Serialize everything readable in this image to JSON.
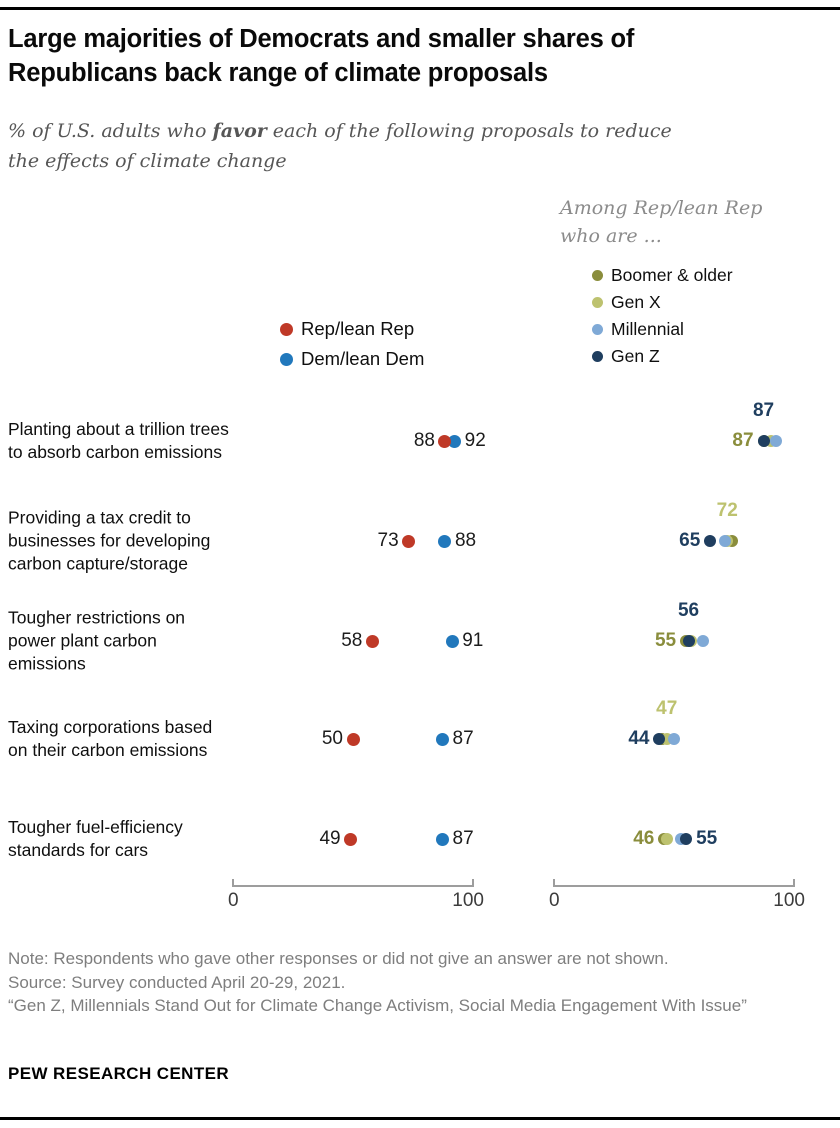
{
  "header": {
    "title": "Large majorities of Democrats and smaller shares of Republicans back range of climate proposals",
    "subtitle_prefix": "% of U.S. adults who ",
    "subtitle_bold": "favor",
    "subtitle_suffix": " each of the following proposals to reduce the effects of climate change"
  },
  "legend": {
    "party": [
      {
        "key": "rep",
        "label": "Rep/lean Rep",
        "color": "#bf3927"
      },
      {
        "key": "dem",
        "label": "Dem/lean Dem",
        "color": "#2178bc"
      }
    ],
    "generation_note": "Among Rep/lean Rep who are ...",
    "generations": [
      {
        "key": "boomer",
        "label": "Boomer & older",
        "color": "#8a8d3c"
      },
      {
        "key": "genx",
        "label": "Gen X",
        "color": "#bdc26f"
      },
      {
        "key": "millennial",
        "label": "Millennial",
        "color": "#7fa9d6"
      },
      {
        "key": "genz",
        "label": "Gen Z",
        "color": "#1f3e5f"
      }
    ]
  },
  "chart_data": {
    "type": "scatter",
    "variant": "dot-plot",
    "title": "Large majorities of Democrats and smaller shares of Republicans back range of climate proposals",
    "units": "% favor",
    "axis": {
      "min": 0,
      "max": 100,
      "tick_labels": [
        "0",
        "100"
      ]
    },
    "panels": [
      "Rep/lean Rep vs Dem/lean Dem (all U.S. adults)",
      "Among Rep/lean Rep by generation"
    ],
    "series_order": [
      "rep",
      "dem",
      "boomer",
      "genx",
      "millennial",
      "genz"
    ],
    "rows": [
      {
        "label": "Planting about a trillion trees to absorb carbon emissions",
        "rep": 88,
        "dem": 92,
        "generations": {
          "boomer": 87,
          "genx": 90,
          "millennial": 92,
          "genz": 87
        },
        "value_labels": [
          {
            "series": "genz",
            "value": 87,
            "placement": "above"
          },
          {
            "series": "boomer",
            "value": 87,
            "placement": "left"
          }
        ]
      },
      {
        "label": "Providing a tax credit to businesses for developing carbon capture/storage",
        "rep": 73,
        "dem": 88,
        "generations": {
          "boomer": 74,
          "genx": 72,
          "millennial": 71,
          "genz": 65
        },
        "value_labels": [
          {
            "series": "genx",
            "value": 72,
            "placement": "above"
          },
          {
            "series": "genz",
            "value": 65,
            "placement": "left"
          }
        ]
      },
      {
        "label": "Tougher restrictions on power plant carbon emissions",
        "rep": 58,
        "dem": 91,
        "generations": {
          "boomer": 55,
          "genx": 57,
          "millennial": 62,
          "genz": 56
        },
        "value_labels": [
          {
            "series": "genz",
            "value": 56,
            "placement": "above"
          },
          {
            "series": "boomer",
            "value": 55,
            "placement": "left"
          }
        ]
      },
      {
        "label": "Taxing corporations based on their carbon emissions",
        "rep": 50,
        "dem": 87,
        "generations": {
          "boomer": 45,
          "genx": 47,
          "millennial": 50,
          "genz": 44
        },
        "value_labels": [
          {
            "series": "genx",
            "value": 47,
            "placement": "above"
          },
          {
            "series": "genz",
            "value": 44,
            "placement": "left"
          }
        ]
      },
      {
        "label": "Tougher fuel-efficiency standards for cars",
        "rep": 49,
        "dem": 87,
        "generations": {
          "boomer": 46,
          "genx": 47,
          "millennial": 53,
          "genz": 55
        },
        "value_labels": [
          {
            "series": "boomer",
            "value": 46,
            "placement": "left"
          },
          {
            "series": "genz",
            "value": 55,
            "placement": "right"
          }
        ]
      }
    ]
  },
  "notes": [
    "Note: Respondents who gave other responses or did not give an answer are not shown.",
    "Source: Survey conducted April 20-29, 2021.",
    "“Gen Z, Millennials Stand Out for Climate Change Activism, Social Media Engagement With Issue”"
  ],
  "footer": "PEW RESEARCH CENTER"
}
